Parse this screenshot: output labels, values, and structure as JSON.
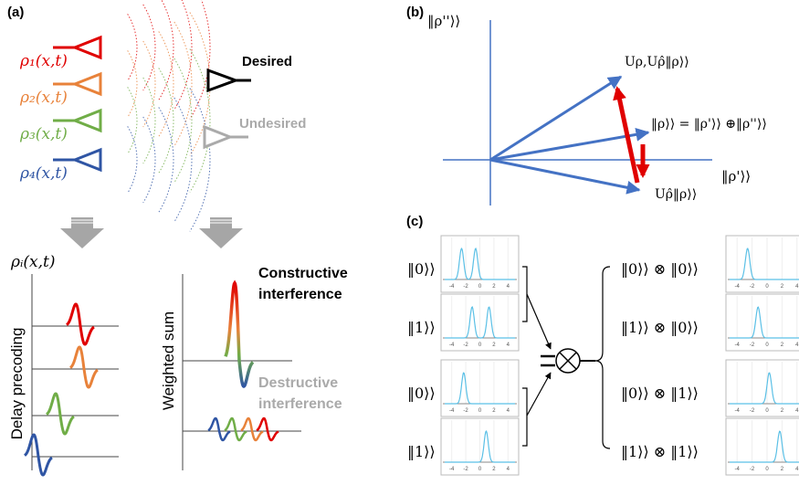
{
  "panel_a": {
    "label": "(a)",
    "sources": [
      {
        "label": "ρ₁(x,t)",
        "color": "#e00000"
      },
      {
        "label": "ρ₂(x,t)",
        "color": "#e8823a"
      },
      {
        "label": "ρ₃(x,t)",
        "color": "#70ad47"
      },
      {
        "label": "ρ₄(x,t)",
        "color": "#2f55a4"
      }
    ],
    "desired": "Desired",
    "undesired": "Undesired",
    "signal_label": "ρᵢ(x,t)",
    "delay_label": "Delay precoding",
    "sum_label": "Weighted sum",
    "constructive": [
      "Constructive",
      "interference"
    ],
    "destructive": [
      "Destructive",
      "interference"
    ]
  },
  "panel_b": {
    "label": "(b)",
    "y_axis": "‖ρ''⟩⟩",
    "x_axis": "‖ρ'⟩⟩",
    "upper": "Uρ,Uρ̂‖ρ⟩⟩",
    "middle": "‖ρ⟩⟩ = ‖ρ'⟩⟩ ⊕‖ρ''⟩⟩",
    "lower": "Uρ̂‖ρ⟩⟩"
  },
  "panel_c": {
    "label": "(c)",
    "xlim": [
      -5,
      5
    ],
    "xticks": [
      -4,
      -2,
      0,
      2,
      4
    ],
    "inputs": [
      {
        "ket": "‖0⟩⟩",
        "peaks": [
          -2.6,
          -0.6
        ]
      },
      {
        "ket": "‖1⟩⟩",
        "peaks": [
          -1.1,
          1.3
        ]
      },
      {
        "ket": "‖0⟩⟩",
        "peaks": [
          -2.3
        ]
      },
      {
        "ket": "‖1⟩⟩",
        "peaks": [
          0.9
        ]
      }
    ],
    "outputs": [
      {
        "ket": "‖0⟩⟩ ⊗ ‖0⟩⟩",
        "peaks": [
          -2.6
        ]
      },
      {
        "ket": "‖1⟩⟩ ⊗ ‖0⟩⟩",
        "peaks": [
          -1.2
        ]
      },
      {
        "ket": "‖0⟩⟩ ⊗ ‖1⟩⟩",
        "peaks": [
          0.3
        ]
      },
      {
        "ket": "‖1⟩⟩ ⊗ ‖1⟩⟩",
        "peaks": [
          1.7
        ]
      }
    ]
  }
}
